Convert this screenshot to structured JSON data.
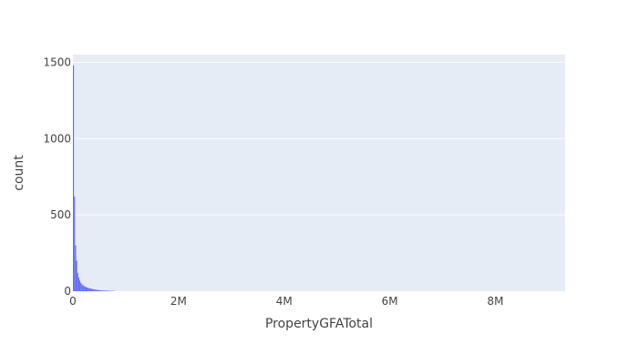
{
  "colors": {
    "plot_bg": "#e5ecf6",
    "grid": "#ffffff",
    "bar": "#636efa",
    "text": "#444444"
  },
  "chart_data": {
    "type": "bar",
    "title": "",
    "xlabel": "PropertyGFATotal",
    "ylabel": "count",
    "xlim": [
      0,
      9320000
    ],
    "ylim": [
      0,
      1550
    ],
    "x_ticks": [
      0,
      2000000,
      4000000,
      6000000,
      8000000
    ],
    "x_tick_labels": [
      "0",
      "2M",
      "4M",
      "6M",
      "8M"
    ],
    "y_ticks": [
      0,
      500,
      1000,
      1500
    ],
    "y_tick_labels": [
      "0",
      "500",
      "1000",
      "1500"
    ],
    "bin_width": 20000,
    "bin_starts": [
      0,
      20000,
      40000,
      60000,
      80000,
      100000,
      120000,
      140000,
      160000,
      180000,
      200000,
      220000,
      240000,
      260000,
      280000,
      300000,
      320000,
      340000,
      360000,
      380000,
      400000,
      420000,
      440000,
      460000,
      480000,
      500000,
      520000,
      540000,
      560000,
      580000,
      600000,
      620000,
      640000,
      660000,
      680000,
      700000,
      720000,
      740000,
      760000,
      780000
    ],
    "counts": [
      1480,
      620,
      300,
      200,
      120,
      90,
      70,
      55,
      45,
      40,
      35,
      30,
      27,
      24,
      22,
      20,
      18,
      16,
      14,
      12,
      11,
      10,
      9,
      8,
      7,
      6,
      6,
      5,
      5,
      4,
      4,
      4,
      3,
      3,
      3,
      3,
      2,
      2,
      2,
      2
    ],
    "grid": true,
    "legend": "none"
  }
}
